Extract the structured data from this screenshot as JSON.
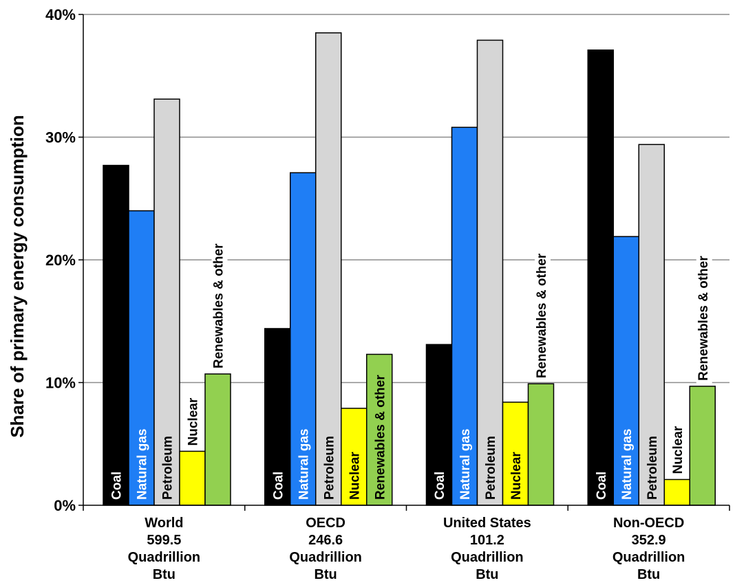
{
  "chart_data": {
    "type": "bar",
    "ylabel": "Share of primary energy consumption",
    "xlabel": "",
    "ylim": [
      0,
      40
    ],
    "yticks": [
      0,
      10,
      20,
      30,
      40
    ],
    "ytick_labels": [
      "0%",
      "10%",
      "20%",
      "30%",
      "40%"
    ],
    "grid": true,
    "legend": "none",
    "series_labels": [
      "Coal",
      "Natural gas",
      "Petroleum",
      "Nuclear",
      "Renewables & other"
    ],
    "series_colors": [
      "#000000",
      "#1f7ef5",
      "#d6d6d6",
      "#ffff00",
      "#92d050"
    ],
    "label_colors": [
      "#ffffff",
      "#ffffff",
      "#000000",
      "#000000",
      "#000000"
    ],
    "groups": [
      {
        "name": "World",
        "label_lines": [
          "World",
          "599.5",
          "Quadrillion",
          "Btu"
        ],
        "values": [
          27.7,
          24.0,
          33.1,
          4.4,
          10.7
        ]
      },
      {
        "name": "OECD",
        "label_lines": [
          "OECD",
          "246.6",
          "Quadrillion",
          "Btu"
        ],
        "values": [
          14.4,
          27.1,
          38.5,
          7.9,
          12.3
        ]
      },
      {
        "name": "United States",
        "label_lines": [
          "United States",
          "101.2",
          "Quadrillion",
          "Btu"
        ],
        "values": [
          13.1,
          30.8,
          37.9,
          8.4,
          9.9
        ]
      },
      {
        "name": "Non-OECD",
        "label_lines": [
          "Non-OECD",
          "352.9",
          "Quadrillion",
          "Btu"
        ],
        "values": [
          37.1,
          21.9,
          29.4,
          2.1,
          9.7
        ]
      }
    ]
  }
}
